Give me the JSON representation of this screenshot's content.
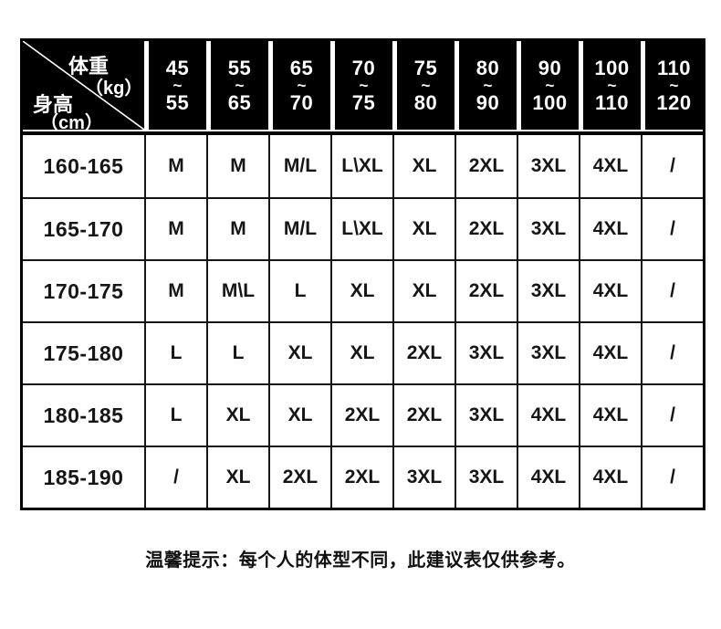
{
  "chart_data": {
    "type": "table",
    "corner": {
      "col_axis_label": "体重",
      "col_axis_unit": "（kg）",
      "row_axis_label": "身高",
      "row_axis_unit": "（cm）"
    },
    "range_separator": "~",
    "weight_ranges": [
      [
        "45",
        "55"
      ],
      [
        "55",
        "65"
      ],
      [
        "65",
        "70"
      ],
      [
        "70",
        "75"
      ],
      [
        "75",
        "80"
      ],
      [
        "80",
        "90"
      ],
      [
        "90",
        "100"
      ],
      [
        "100",
        "110"
      ],
      [
        "110",
        "120"
      ]
    ],
    "rows": [
      {
        "height": "160-165",
        "sizes": [
          "M",
          "M",
          "M/L",
          "L\\XL",
          "XL",
          "2XL",
          "3XL",
          "4XL",
          "/"
        ]
      },
      {
        "height": "165-170",
        "sizes": [
          "M",
          "M",
          "M/L",
          "L\\XL",
          "XL",
          "2XL",
          "3XL",
          "4XL",
          "/"
        ]
      },
      {
        "height": "170-175",
        "sizes": [
          "M",
          "M\\L",
          "L",
          "XL",
          "XL",
          "2XL",
          "3XL",
          "4XL",
          "/"
        ]
      },
      {
        "height": "175-180",
        "sizes": [
          "L",
          "L",
          "XL",
          "XL",
          "2XL",
          "3XL",
          "3XL",
          "4XL",
          "/"
        ]
      },
      {
        "height": "180-185",
        "sizes": [
          "L",
          "XL",
          "XL",
          "2XL",
          "2XL",
          "3XL",
          "4XL",
          "4XL",
          "/"
        ]
      },
      {
        "height": "185-190",
        "sizes": [
          "/",
          "XL",
          "2XL",
          "2XL",
          "3XL",
          "3XL",
          "4XL",
          "4XL",
          "/"
        ]
      }
    ],
    "note": "温馨提示：每个人的体型不同，此建议表仅供参考。"
  },
  "colors": {
    "header_bg": "#000000",
    "header_text": "#ffffff",
    "body_bg": "#ffffff",
    "body_text": "#161616",
    "grid_line": "#161616"
  }
}
